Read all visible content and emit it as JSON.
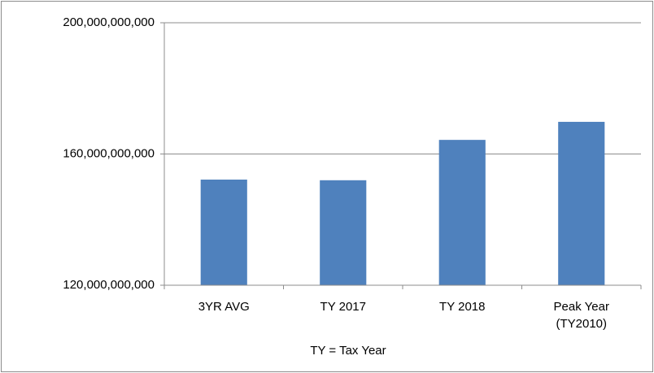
{
  "chart_data": {
    "type": "bar",
    "x_label": "TY = Tax Year",
    "categories": [
      "3YR AVG",
      "TY 2017",
      "TY 2018",
      "Peak Year (TY2010)"
    ],
    "values": [
      152200000000,
      152000000000,
      164300000000,
      169800000000
    ],
    "color": "#4f81bd",
    "ylim": [
      120000000000,
      200000000000
    ],
    "yticks": [
      {
        "value": 120000000000,
        "label": "120,000,000,000"
      },
      {
        "value": 160000000000,
        "label": "160,000,000,000"
      },
      {
        "value": 200000000000,
        "label": "200,000,000,000"
      }
    ],
    "grid": true
  }
}
